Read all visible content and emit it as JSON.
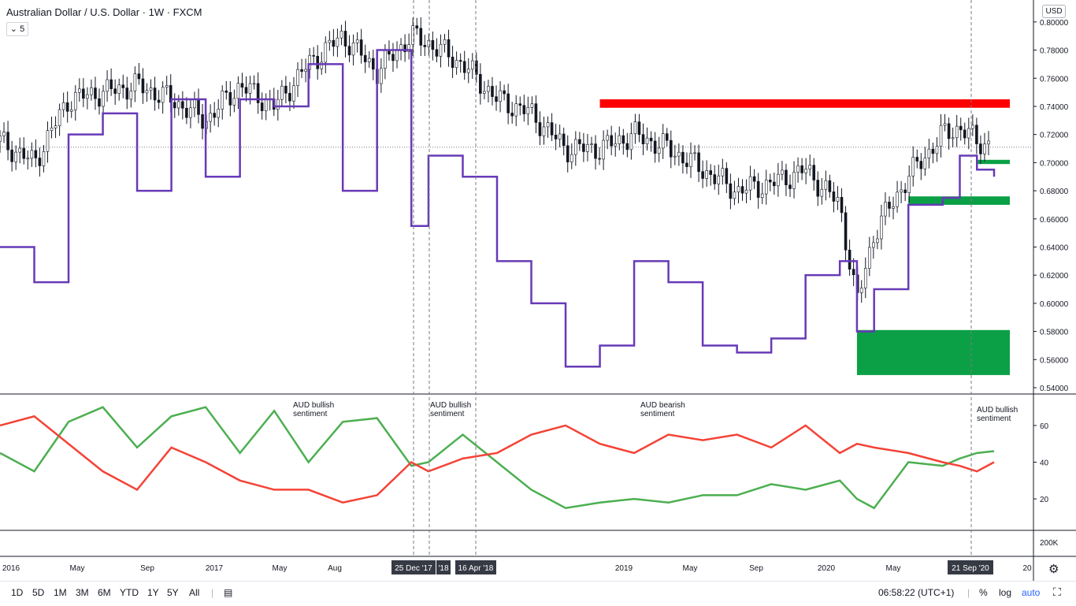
{
  "header": {
    "symbol_title": "Australian Dollar / U.S. Dollar · 1W · FXCM",
    "interval_value": "5",
    "interval_chevron_icon": "chevron-down-icon",
    "currency_badge": "USD"
  },
  "colors": {
    "candle": "#131722",
    "purple_line": "#673ab7",
    "resistance_zone": "#ff0000",
    "support_zone": "#0ba046",
    "bullish_line": "#4caf50",
    "bearish_line": "#f44336",
    "axis_label_bg": "#363a45"
  },
  "chart_data": [
    {
      "type": "candlestick",
      "name": "price-pane",
      "y_ticks": [
        "0.80000",
        "0.78000",
        "0.76000",
        "0.74000",
        "0.72000",
        "0.70000",
        "0.68000",
        "0.66000",
        "0.64000",
        "0.62000",
        "0.60000",
        "0.58000",
        "0.56000",
        "0.54000"
      ],
      "ylim": [
        0.54,
        0.81
      ],
      "x_ticks": [
        "2016",
        "May",
        "Sep",
        "2017",
        "May",
        "Aug",
        "Sep",
        "2019",
        "May",
        "Sep",
        "2020",
        "May",
        "20"
      ],
      "x_highlight_labels": [
        "25 Dec '17",
        "'18",
        "16 Apr '18",
        "21 Sep '20"
      ],
      "x": [
        "2016-01",
        "2016-03",
        "2016-05",
        "2016-07",
        "2016-09",
        "2016-11",
        "2017-01",
        "2017-03",
        "2017-05",
        "2017-07",
        "2017-09",
        "2017-11",
        "2018-01",
        "2018-02",
        "2018-04",
        "2018-06",
        "2018-08",
        "2018-10",
        "2018-12",
        "2019-02",
        "2019-04",
        "2019-06",
        "2019-08",
        "2019-10",
        "2019-12",
        "2020-02",
        "2020-03",
        "2020-04",
        "2020-06",
        "2020-08",
        "2020-09",
        "2020-10",
        "2020-11"
      ],
      "close": [
        0.715,
        0.7,
        0.745,
        0.75,
        0.755,
        0.745,
        0.73,
        0.755,
        0.74,
        0.77,
        0.79,
        0.765,
        0.79,
        0.785,
        0.77,
        0.745,
        0.735,
        0.71,
        0.71,
        0.72,
        0.71,
        0.695,
        0.68,
        0.685,
        0.695,
        0.67,
        0.6,
        0.65,
        0.69,
        0.72,
        0.725,
        0.715,
        0.712
      ],
      "overlay_line": {
        "color": "#673ab7",
        "values": [
          0.64,
          0.615,
          0.72,
          0.735,
          0.68,
          0.745,
          0.69,
          0.745,
          0.74,
          0.77,
          0.68,
          0.78,
          0.655,
          0.705,
          0.69,
          0.63,
          0.6,
          0.555,
          0.57,
          0.63,
          0.615,
          0.57,
          0.565,
          0.575,
          0.62,
          0.63,
          0.58,
          0.61,
          0.67,
          0.675,
          0.705,
          0.695,
          0.69
        ]
      },
      "zones": [
        {
          "kind": "resistance",
          "color": "#ff0000",
          "from": "2018-12",
          "to": "2020-11",
          "y": [
            0.739,
            0.745
          ]
        },
        {
          "kind": "support",
          "color": "#0ba046",
          "from": "2020-10",
          "to": "2020-11",
          "y": [
            0.699,
            0.702
          ]
        },
        {
          "kind": "support",
          "color": "#0ba046",
          "from": "2020-06",
          "to": "2020-11",
          "y": [
            0.67,
            0.676
          ]
        },
        {
          "kind": "support",
          "color": "#0ba046",
          "from": "2020-03",
          "to": "2020-11",
          "y": [
            0.549,
            0.581
          ]
        }
      ],
      "last_price_line": 0.711
    },
    {
      "type": "line",
      "name": "sentiment-pane",
      "y_ticks": [
        "60",
        "40",
        "20"
      ],
      "ylim": [
        5,
        75
      ],
      "annotations": [
        "AUD bullish\nsentiment",
        "AUD bullish\nsentiment",
        "AUD bearish\nsentiment",
        "AUD bullish\nsentiment"
      ],
      "series": [
        {
          "color": "#4caf50",
          "values": [
            45,
            35,
            62,
            70,
            48,
            65,
            70,
            45,
            68,
            40,
            62,
            64,
            38,
            40,
            55,
            40,
            25,
            15,
            18,
            20,
            18,
            22,
            22,
            28,
            25,
            30,
            20,
            15,
            40,
            38,
            42,
            45,
            46
          ]
        },
        {
          "color": "#f44336",
          "values": [
            60,
            65,
            50,
            35,
            25,
            48,
            40,
            30,
            25,
            25,
            18,
            22,
            40,
            35,
            42,
            45,
            55,
            60,
            50,
            45,
            55,
            52,
            55,
            48,
            60,
            45,
            50,
            48,
            45,
            40,
            38,
            35,
            40
          ]
        }
      ]
    },
    {
      "type": "bar",
      "name": "volume-pane",
      "y_ticks": [
        "200K"
      ]
    }
  ],
  "toolbar": {
    "timeframes": [
      "1D",
      "5D",
      "1M",
      "3M",
      "6M",
      "YTD",
      "1Y",
      "5Y",
      "All"
    ],
    "compare_icon": "calendar-range-icon",
    "clock": "06:58:22 (UTC+1)",
    "percent": "%",
    "log": "log",
    "auto": "auto",
    "fullscreen_icon": "fullscreen-icon",
    "settings_icon": "gear-icon"
  }
}
